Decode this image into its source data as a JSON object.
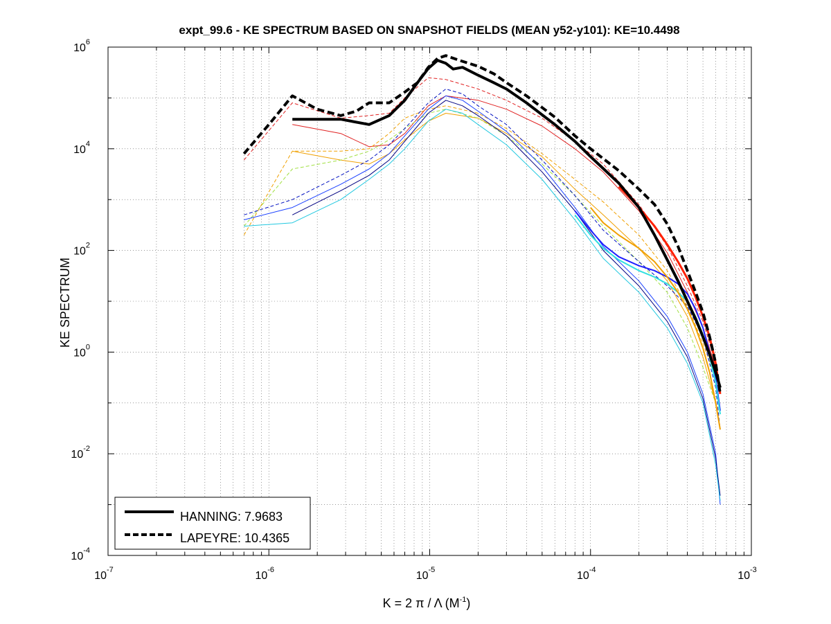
{
  "chart_data": {
    "type": "line",
    "title": "expt_99.6 - KE SPECTRUM BASED ON SNAPSHOT FIELDS (MEAN y52-y101): KE=10.4498",
    "xlabel": "K = 2 π / Λ  (M",
    "xlabel_sup": "-1",
    "xlabel_tail": ")",
    "ylabel": "KE SPECTRUM",
    "xscale": "log",
    "yscale": "log",
    "xlim": [
      1e-07,
      0.001
    ],
    "ylim": [
      0.0001,
      1000000.0
    ],
    "x_tick_labels": [
      {
        "base": "10",
        "exp": "-7",
        "value": 1e-07
      },
      {
        "base": "10",
        "exp": "-6",
        "value": 1e-06
      },
      {
        "base": "10",
        "exp": "-5",
        "value": 1e-05
      },
      {
        "base": "10",
        "exp": "-4",
        "value": 0.0001
      },
      {
        "base": "10",
        "exp": "-3",
        "value": 0.001
      }
    ],
    "y_tick_labels": [
      {
        "base": "10",
        "exp": "-4",
        "value": 0.0001
      },
      {
        "base": "10",
        "exp": "-2",
        "value": 0.01
      },
      {
        "base": "10",
        "exp": "0",
        "value": 1
      },
      {
        "base": "10",
        "exp": "2",
        "value": 100
      },
      {
        "base": "10",
        "exp": "4",
        "value": 10000
      },
      {
        "base": "10",
        "exp": "6",
        "value": 1000000
      }
    ],
    "grid": true,
    "legend_position": "bottom-left",
    "legend": [
      {
        "label": "HANNING: 7.9683",
        "style": "solid"
      },
      {
        "label": "LAPEYRE: 10.4365",
        "style": "dashed"
      }
    ],
    "series": [
      {
        "name": "HANNING: 7.9683",
        "color": "#000000",
        "style": "solid",
        "width": 4,
        "x": [
          1.4e-06,
          2.8e-06,
          4.2e-06,
          5.6e-06,
          7e-06,
          8.4e-06,
          9.8e-06,
          1.12e-05,
          1.26e-05,
          1.4e-05,
          1.6e-05,
          2e-05,
          2.5e-05,
          3e-05,
          4e-05,
          6e-05,
          8e-05,
          0.0001,
          0.00015,
          0.0002,
          0.00025,
          0.0003,
          0.00035,
          0.0004,
          0.00045,
          0.0005,
          0.00055,
          0.0006,
          0.00064
        ],
        "y": [
          38000,
          38000,
          30000,
          45000,
          90000,
          200000,
          380000,
          550000,
          480000,
          370000,
          400000,
          280000,
          200000,
          150000,
          80000,
          30000,
          14000,
          7000,
          2100,
          700,
          200,
          65,
          25,
          10,
          4.5,
          2,
          0.9,
          0.4,
          0.2
        ]
      },
      {
        "name": "LAPEYRE: 10.4365",
        "color": "#000000",
        "style": "dashed",
        "width": 4,
        "x": [
          7e-07,
          1e-06,
          1.4e-06,
          2e-06,
          2.8e-06,
          3.5e-06,
          4.2e-06,
          5.6e-06,
          7e-06,
          8.4e-06,
          9.8e-06,
          1.12e-05,
          1.26e-05,
          1.5e-05,
          2e-05,
          2.5e-05,
          3e-05,
          4e-05,
          6e-05,
          8e-05,
          0.0001,
          0.00015,
          0.0002,
          0.00025,
          0.0003,
          0.00035,
          0.0004,
          0.00045,
          0.0005,
          0.00055,
          0.0006,
          0.00064
        ],
        "y": [
          8000,
          30000,
          110000,
          60000,
          45000,
          55000,
          80000,
          80000,
          130000,
          200000,
          400000,
          600000,
          680000,
          560000,
          420000,
          300000,
          200000,
          110000,
          42000,
          18000,
          10000,
          3700,
          1600,
          800,
          330,
          120,
          40,
          15,
          6,
          2,
          0.6,
          0.15
        ]
      },
      {
        "name": "",
        "color": "#e02020",
        "style": "dashed",
        "width": 1,
        "x": [
          7e-07,
          1.4e-06,
          2.8e-06,
          4.2e-06,
          5.6e-06,
          7e-06,
          9.8e-06,
          1.26e-05,
          2e-05,
          3e-05,
          5e-05,
          8e-05,
          0.00012,
          0.0002,
          0.0003,
          0.0004,
          0.0005,
          0.0006,
          0.00064
        ],
        "y": [
          6000,
          80000,
          40000,
          45000,
          50000,
          100000,
          250000,
          230000,
          150000,
          90000,
          40000,
          14000,
          5000,
          800,
          120,
          20,
          4,
          0.6,
          0.2
        ]
      },
      {
        "name": "",
        "color": "#e02020",
        "style": "solid",
        "width": 1,
        "x": [
          1.4e-06,
          2.8e-06,
          4.2e-06,
          5.6e-06,
          7e-06,
          9.8e-06,
          1.26e-05,
          2e-05,
          3e-05,
          5e-05,
          8e-05,
          0.00012,
          0.0002,
          0.0003,
          0.0004,
          0.0005,
          0.0006
        ],
        "y": [
          30000,
          20000,
          11000,
          12000,
          20000,
          70000,
          110000,
          90000,
          60000,
          28000,
          10000,
          3500,
          600,
          90,
          15,
          3,
          0.5
        ]
      },
      {
        "name": "",
        "color": "#f0a000",
        "style": "dashed",
        "width": 1,
        "x": [
          7e-07,
          1.4e-06,
          2.8e-06,
          4.2e-06,
          5.6e-06,
          7e-06,
          9.8e-06,
          1.26e-05,
          2e-05,
          3e-05,
          5e-05,
          8e-05,
          0.00012,
          0.0002,
          0.0003,
          0.0004,
          0.0005,
          0.0006
        ],
        "y": [
          200,
          9000,
          9000,
          10000,
          20000,
          40000,
          60000,
          70000,
          50000,
          25000,
          8000,
          2500,
          900,
          200,
          40,
          8,
          1.5,
          0.3
        ]
      },
      {
        "name": "",
        "color": "#f0a000",
        "style": "solid",
        "width": 1,
        "x": [
          1.4e-06,
          2.8e-06,
          4.2e-06,
          5.6e-06,
          7e-06,
          9.8e-06,
          1.26e-05,
          2e-05,
          3e-05,
          5e-05,
          8e-05,
          0.00012,
          0.0002,
          0.0003,
          0.0004,
          0.0005,
          0.0006
        ],
        "y": [
          9000,
          6000,
          5000,
          8000,
          15000,
          35000,
          50000,
          40000,
          20000,
          7000,
          1600,
          500,
          110,
          25,
          5,
          0.8,
          0.1
        ]
      },
      {
        "name": "",
        "color": "#a0e040",
        "style": "dashed",
        "width": 1,
        "x": [
          7e-07,
          1.4e-06,
          2.8e-06,
          4.2e-06,
          5.6e-06,
          7e-06,
          9.8e-06,
          1.26e-05,
          2e-05,
          3e-05,
          5e-05,
          8e-05,
          0.00012,
          0.0002,
          0.0003,
          0.0004,
          0.0005,
          0.0006
        ],
        "y": [
          300,
          4000,
          6000,
          9000,
          15000,
          25000,
          50000,
          60000,
          40000,
          18000,
          5000,
          1200,
          300,
          60,
          15,
          3,
          0.5,
          0.1
        ]
      },
      {
        "name": "",
        "color": "#0010c0",
        "style": "dashed",
        "width": 1,
        "x": [
          7e-07,
          1.4e-06,
          2.8e-06,
          4.2e-06,
          5.6e-06,
          7e-06,
          9.8e-06,
          1.26e-05,
          1.6e-05,
          2e-05,
          3e-05,
          5e-05,
          8e-05,
          0.00012,
          0.0002,
          0.0003,
          0.0004,
          0.0005,
          0.0006,
          0.00064
        ],
        "y": [
          500,
          1000,
          3000,
          6000,
          12000,
          25000,
          80000,
          150000,
          120000,
          70000,
          30000,
          6000,
          1200,
          250,
          60,
          20,
          8,
          2,
          0.2,
          0.03
        ]
      },
      {
        "name": "",
        "color": "#1a40ff",
        "style": "solid",
        "width": 1,
        "x": [
          7e-07,
          1.4e-06,
          2.8e-06,
          4.2e-06,
          5.6e-06,
          7e-06,
          9.8e-06,
          1.26e-05,
          1.6e-05,
          2e-05,
          3e-05,
          5e-05,
          8e-05,
          0.00012,
          0.0002,
          0.0003,
          0.0004,
          0.0005,
          0.0006,
          0.00064
        ],
        "y": [
          400,
          700,
          2000,
          4000,
          8000,
          18000,
          60000,
          110000,
          90000,
          55000,
          22000,
          4500,
          700,
          120,
          25,
          5,
          1,
          0.15,
          0.01,
          0.001
        ]
      },
      {
        "name": "",
        "color": "#000080",
        "style": "solid",
        "width": 1,
        "x": [
          1.4e-06,
          2.8e-06,
          4.2e-06,
          5.6e-06,
          7e-06,
          9.8e-06,
          1.26e-05,
          1.6e-05,
          2e-05,
          3e-05,
          5e-05,
          8e-05,
          0.00012,
          0.0002,
          0.0003,
          0.0004,
          0.0005,
          0.0006,
          0.00064
        ],
        "y": [
          500,
          1500,
          3000,
          6000,
          14000,
          50000,
          90000,
          70000,
          45000,
          18000,
          3500,
          600,
          100,
          20,
          4,
          0.8,
          0.12,
          0.008,
          0.0015
        ]
      },
      {
        "name": "",
        "color": "#20c8e0",
        "style": "solid",
        "width": 1,
        "x": [
          7e-07,
          1.4e-06,
          2.8e-06,
          4.2e-06,
          5.6e-06,
          7e-06,
          9.8e-06,
          1.26e-05,
          1.6e-05,
          2e-05,
          3e-05,
          5e-05,
          8e-05,
          0.00012,
          0.0002,
          0.0003,
          0.0004,
          0.0005,
          0.0006,
          0.00064
        ],
        "y": [
          300,
          350,
          1000,
          2500,
          5000,
          10000,
          35000,
          60000,
          50000,
          30000,
          12000,
          2500,
          400,
          70,
          15,
          3,
          0.6,
          0.1,
          0.006,
          0.0012
        ]
      },
      {
        "name": "",
        "color": "#2020ff",
        "style": "solid",
        "width": 2,
        "x": [
          8e-05,
          0.0001,
          0.00012,
          0.00015,
          0.0002,
          0.00025,
          0.0003,
          0.00035,
          0.0004,
          0.00045,
          0.0005,
          0.00055,
          0.0006,
          0.00064
        ],
        "y": [
          600,
          250,
          130,
          75,
          50,
          40,
          30,
          22,
          14,
          7,
          3,
          1,
          0.3,
          0.07
        ]
      },
      {
        "name": "",
        "color": "#30e0e0",
        "style": "solid",
        "width": 2,
        "x": [
          8e-05,
          0.0001,
          0.00012,
          0.00015,
          0.0002,
          0.00025,
          0.0003,
          0.00035,
          0.0004,
          0.00045,
          0.0005,
          0.00055,
          0.0006,
          0.00064
        ],
        "y": [
          500,
          200,
          110,
          65,
          40,
          30,
          22,
          15,
          10,
          5,
          2.2,
          0.8,
          0.25,
          0.06
        ]
      },
      {
        "name": "",
        "color": "#ff2000",
        "style": "solid",
        "width": 3,
        "x": [
          0.00015,
          0.0002,
          0.00025,
          0.0003,
          0.00035,
          0.0004,
          0.00045,
          0.0005,
          0.00055,
          0.0006,
          0.00064
        ],
        "y": [
          1800,
          700,
          300,
          130,
          60,
          28,
          12,
          5,
          2,
          0.6,
          0.15
        ]
      },
      {
        "name": "",
        "color": "#f0a000",
        "style": "solid",
        "width": 2,
        "x": [
          0.0001,
          0.00012,
          0.00015,
          0.0002,
          0.00025,
          0.0003,
          0.00035,
          0.0004,
          0.00045,
          0.0005,
          0.00055,
          0.0006,
          0.00064
        ],
        "y": [
          700,
          350,
          200,
          110,
          60,
          30,
          15,
          7,
          3,
          1.2,
          0.4,
          0.1,
          0.03
        ]
      }
    ]
  }
}
